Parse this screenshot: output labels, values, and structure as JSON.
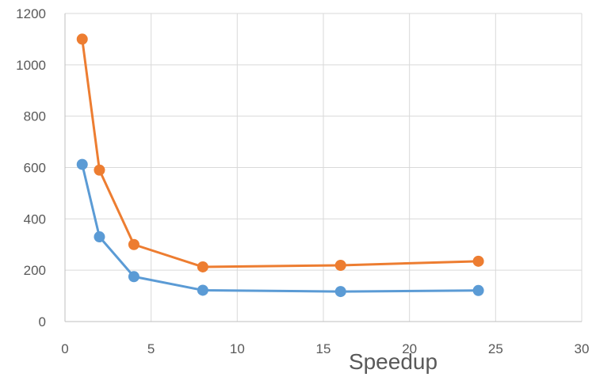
{
  "chart_data": {
    "type": "scatter",
    "title": "",
    "xlabel": "Speedup",
    "ylabel": "",
    "xlim": [
      0,
      30
    ],
    "ylim": [
      0,
      1200
    ],
    "x_ticks": [
      0,
      5,
      10,
      15,
      20,
      25,
      30
    ],
    "y_ticks": [
      0,
      200,
      400,
      600,
      800,
      1000,
      1200
    ],
    "grid": "vertical-and-horizontal",
    "legend": "none",
    "series": [
      {
        "color": "#5b9bd5",
        "x": [
          1,
          2,
          4,
          8,
          16,
          24
        ],
        "y": [
          612,
          330,
          175,
          122,
          117,
          121
        ]
      },
      {
        "color": "#ed7d31",
        "x": [
          1,
          2,
          4,
          8,
          16,
          24
        ],
        "y": [
          1100,
          590,
          300,
          213,
          219,
          235
        ]
      }
    ]
  }
}
